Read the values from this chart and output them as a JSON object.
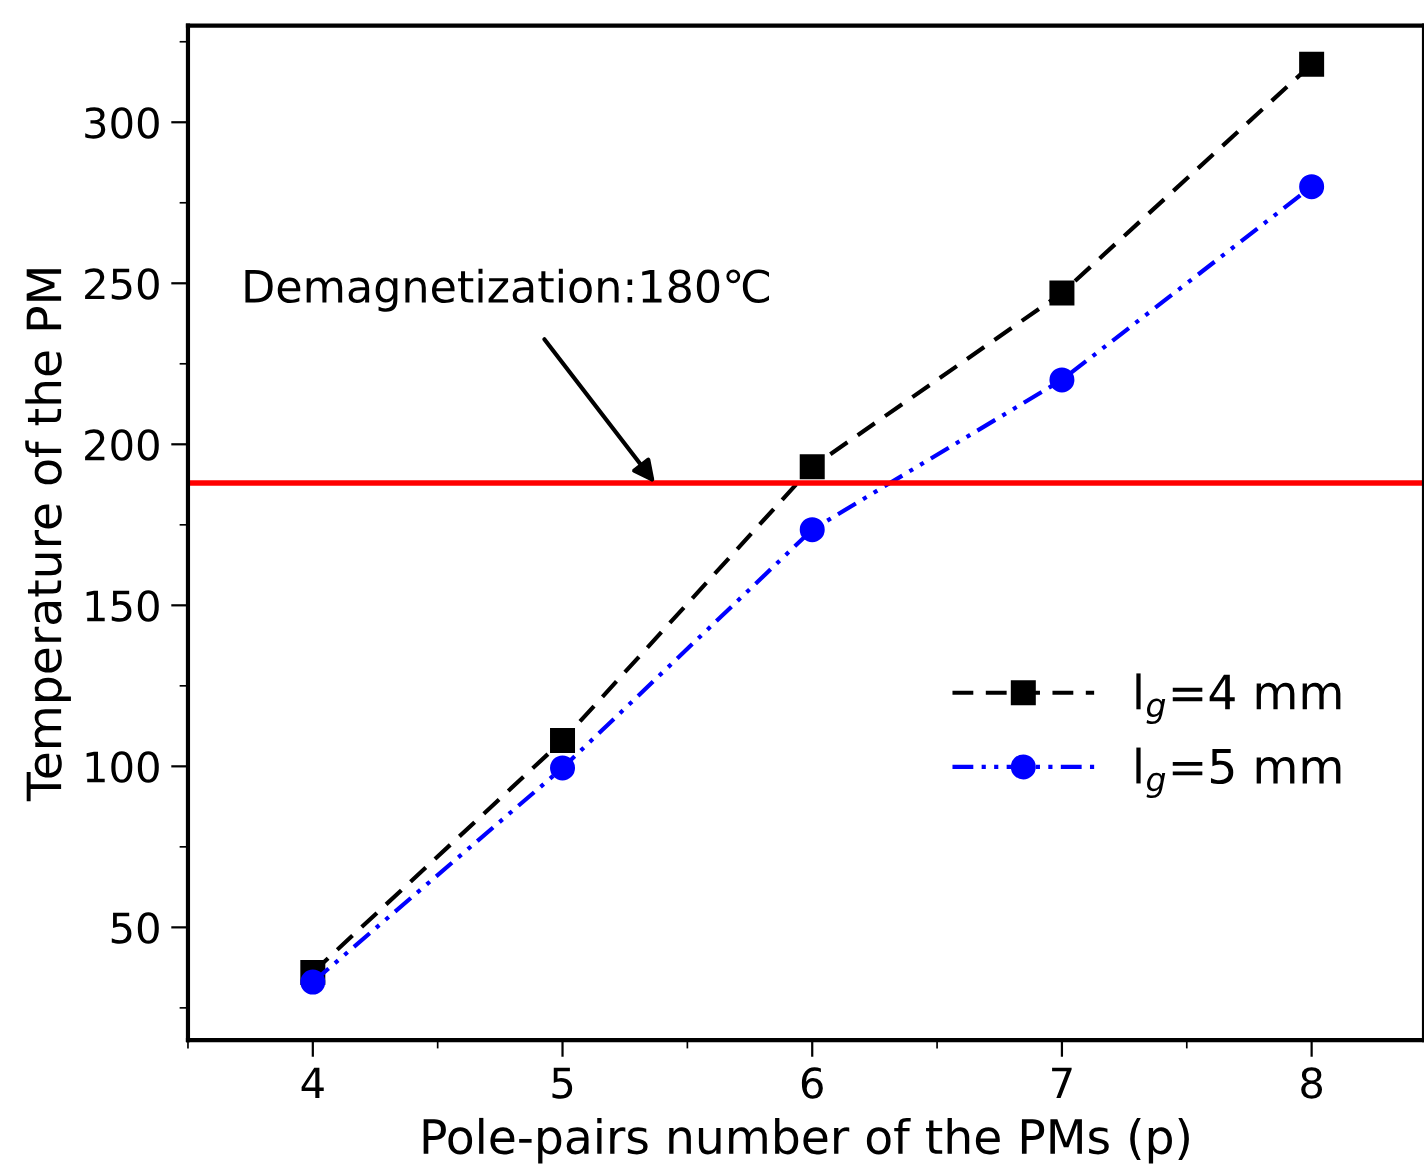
{
  "chart_data": {
    "type": "line",
    "xlabel": "Pole-pairs number of the PMs (p)",
    "ylabel": "Temperature of the PM",
    "x": [
      4,
      5,
      6,
      7,
      8
    ],
    "series": [
      {
        "name": "l$_{g}$=4 mm",
        "color": "#000000",
        "values": [
          36,
          108,
          193,
          247,
          318
        ],
        "marker": "square",
        "line_style": "dashed"
      },
      {
        "name": "l$_{g}$=5 mm",
        "color": "#0000ff",
        "values": [
          33,
          99.5,
          173.5,
          220,
          280
        ],
        "marker": "circle",
        "line_style": "dashdotdot"
      }
    ],
    "xlim": [
      3.5,
      8.45
    ],
    "ylim": [
      15,
      330
    ],
    "xticks": [
      4,
      5,
      6,
      7,
      8
    ],
    "yticks": [
      50,
      100,
      150,
      200,
      250,
      300
    ],
    "ref_lines": [
      {
        "axis": "y",
        "value": 188,
        "color": "#ff0000",
        "line_style": "solid"
      }
    ],
    "annotations": [
      {
        "text": "Demagnetization:180℃",
        "x": 5.37,
        "y": 188
      }
    ],
    "grid": false,
    "legend": "center right"
  }
}
